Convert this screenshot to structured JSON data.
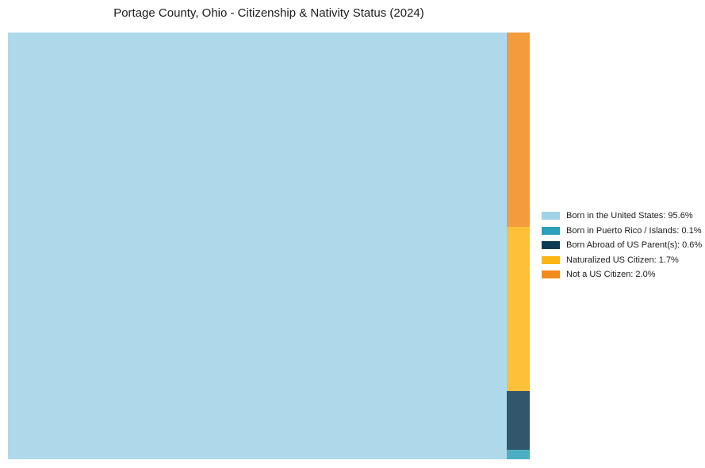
{
  "header": {
    "title": "Portage County, Ohio - Citizenship & Nativity Status (2024)"
  },
  "chart_data": {
    "type": "treemap",
    "title": "Portage County, Ohio - Citizenship & Nativity Status (2024)",
    "unit": "%",
    "categories": [
      "Born in the United States",
      "Born in Puerto Rico / Islands",
      "Born Abroad of US Parent(s)",
      "Naturalized US Citizen",
      "Not a US Citizen"
    ],
    "values": [
      95.6,
      0.1,
      0.6,
      1.7,
      2.0
    ],
    "colors": [
      "#A0D2E8",
      "#2BA0B9",
      "#0E3A54",
      "#FDB515",
      "#F28A1C"
    ],
    "layout": {
      "largest_block": "left",
      "remainder_column": "right",
      "column_order_top_to_bottom": [
        "Not a US Citizen",
        "Naturalized US Citizen",
        "Born Abroad of US Parent(s)",
        "Born in Puerto Rico / Islands"
      ],
      "legend_position": "right-center",
      "axes": "none",
      "grid": false
    }
  },
  "legend": {
    "items": [
      {
        "label": "Born in the United States: 95.6%",
        "color": "#A0D2E8"
      },
      {
        "label": "Born in Puerto Rico / Islands: 0.1%",
        "color": "#2BA0B9"
      },
      {
        "label": "Born Abroad of US Parent(s): 0.6%",
        "color": "#0E3A54"
      },
      {
        "label": "Naturalized US Citizen: 1.7%",
        "color": "#FDB515"
      },
      {
        "label": "Not a US Citizen: 2.0%",
        "color": "#F28A1C"
      }
    ]
  }
}
